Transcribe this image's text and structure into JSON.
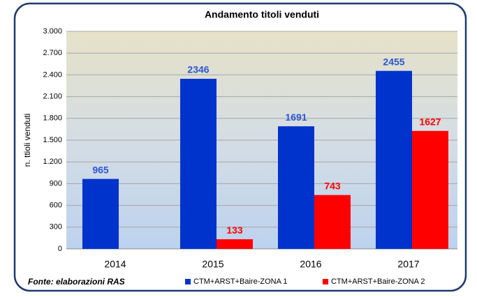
{
  "chart_data": {
    "type": "bar",
    "title": "Andamento titoli venduti",
    "y_label": "n. ttioli venduti",
    "annotation": "Fonte: elaborazioni RAS",
    "categories": [
      "2014",
      "2015",
      "2016",
      "2017"
    ],
    "series": [
      {
        "name": "CTM+ARST+Baire-ZONA 1",
        "color": "#0033cc",
        "label_color": "#2a56d0",
        "values": [
          965,
          2346,
          1691,
          2455
        ]
      },
      {
        "name": "CTM+ARST+Baire-ZONA 2",
        "color": "#ff0000",
        "label_color": "#ff0000",
        "values": [
          null,
          133,
          743,
          1627
        ]
      }
    ],
    "ylim": [
      0,
      3000
    ],
    "yticks": [
      0,
      300,
      600,
      900,
      {
        "value": 1200,
        "label": "1.200"
      },
      {
        "value": 1500,
        "label": "1.500"
      },
      {
        "value": 1800,
        "label": "1.800"
      },
      {
        "value": 2100,
        "label": "2.100"
      },
      {
        "value": 2400,
        "label": "2.400"
      },
      {
        "value": 2700,
        "label": "2.700"
      },
      {
        "value": 3000,
        "label": "3.000"
      }
    ],
    "grid": true,
    "legend": "bottom"
  }
}
